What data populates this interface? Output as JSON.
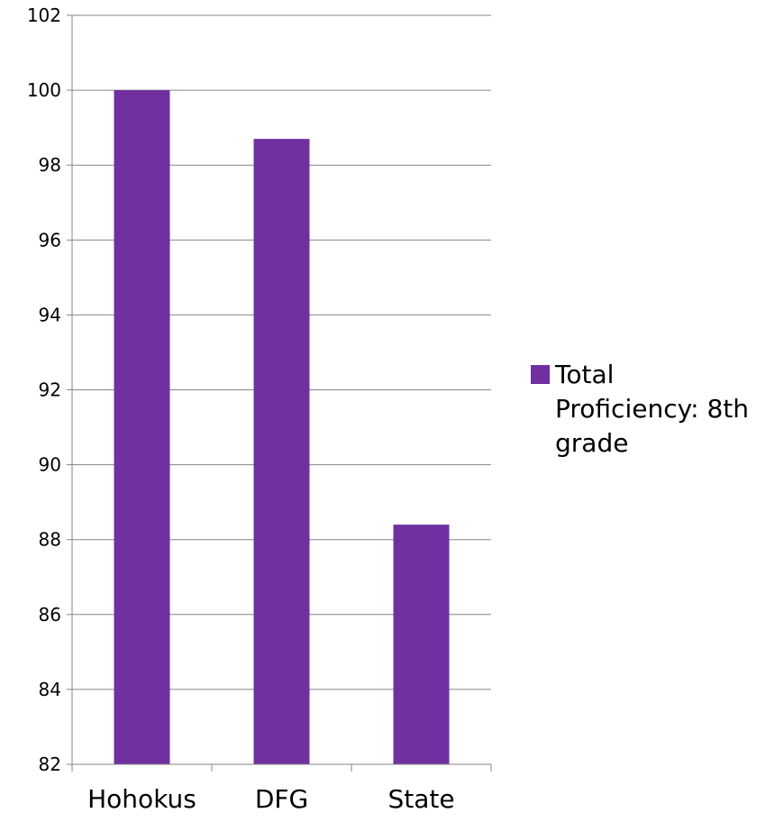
{
  "chart_data": {
    "type": "bar",
    "title": "",
    "xlabel": "",
    "ylabel": "",
    "categories": [
      "Hohokus",
      "DFG",
      "State"
    ],
    "series": [
      {
        "name": "Total Proficiency: 8th grade",
        "values": [
          100,
          98.7,
          88.4
        ],
        "color": "#7030A0"
      }
    ],
    "ylim": [
      82,
      102
    ],
    "ytick_step": 2,
    "ytick_labels": [
      "82",
      "84",
      "86",
      "88",
      "90",
      "92",
      "94",
      "96",
      "98",
      "100",
      "102"
    ],
    "grid": true,
    "legend": {
      "position": "right",
      "lines": [
        "Total",
        "Proficiency: 8th",
        "grade"
      ]
    }
  }
}
